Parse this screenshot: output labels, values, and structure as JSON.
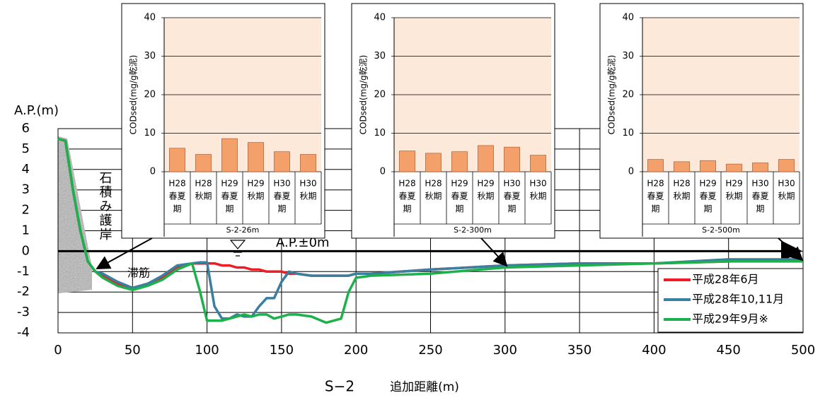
{
  "chart_data": [
    {
      "type": "line",
      "ylabel": "A.P.(m)",
      "xlabel_prefix": "S−2",
      "xlabel": "追加距離(m)",
      "annotations": [
        "石積み護岸",
        "滞筋",
        "A.P.±0m"
      ],
      "x": [
        0,
        5,
        10,
        15,
        20,
        25,
        30,
        40,
        50,
        60,
        70,
        80,
        90,
        95,
        100,
        105,
        110,
        115,
        120,
        125,
        130,
        135,
        140,
        145,
        150,
        155,
        160,
        170,
        180,
        190,
        195,
        200,
        210,
        250,
        300,
        350,
        400,
        450,
        500
      ],
      "series": [
        {
          "name": "平成28年6月",
          "color": "#ee1c24",
          "values": [
            5.5,
            5.4,
            3,
            1,
            -0.5,
            -1.0,
            -1.2,
            -1.6,
            -1.8,
            -1.6,
            -1.3,
            -0.8,
            -0.6,
            -0.6,
            -0.6,
            -0.6,
            -0.7,
            -0.7,
            -0.8,
            -0.8,
            -0.9,
            -0.9,
            -1.0,
            -1.0,
            -1.0,
            -1.1,
            -1.1,
            -1.2,
            -1.2,
            -1.2,
            -1.2,
            -1.1,
            -1.1,
            -0.9,
            -0.7,
            -0.6,
            -0.6,
            -0.5,
            -0.4
          ]
        },
        {
          "name": "平成28年10,11月",
          "color": "#3a7fa0",
          "values": [
            5.5,
            5.4,
            3,
            1,
            -0.5,
            -1.0,
            -1.1,
            -1.5,
            -1.8,
            -1.6,
            -1.2,
            -0.7,
            -0.6,
            -0.55,
            -0.55,
            -2.7,
            -3.3,
            -3.3,
            -3.1,
            -3.2,
            -3.2,
            -2.7,
            -2.3,
            -2.3,
            -1.5,
            -1.0,
            -1.1,
            -1.2,
            -1.2,
            -1.2,
            -1.2,
            -1.1,
            -1.1,
            -0.9,
            -0.7,
            -0.6,
            -0.6,
            -0.4,
            -0.4
          ]
        },
        {
          "name": "平成29年9月※",
          "color": "#1db04b",
          "values": [
            5.5,
            5.4,
            3,
            1,
            -0.5,
            -1.0,
            -1.3,
            -1.7,
            -1.9,
            -1.7,
            -1.4,
            -0.9,
            -0.6,
            -1.9,
            -3.4,
            -3.4,
            -3.4,
            -3.3,
            -3.2,
            -3.1,
            -3.2,
            -3.1,
            -3.1,
            -3.3,
            -3.2,
            -3.1,
            -3.1,
            -3.2,
            -3.5,
            -3.3,
            -2.0,
            -1.3,
            -1.2,
            -1.1,
            -0.8,
            -0.7,
            -0.6,
            -0.5,
            -0.5
          ]
        }
      ],
      "xlim": [
        0,
        500
      ],
      "xticks": [
        0,
        50,
        100,
        150,
        200,
        250,
        300,
        350,
        400,
        450,
        500
      ],
      "ylim": [
        -4,
        6
      ],
      "yticks": [
        -4,
        -3,
        -2,
        -1,
        0,
        1,
        2,
        3,
        4,
        5,
        6
      ],
      "grid": true,
      "legend": "lower right"
    },
    {
      "type": "bar",
      "ylabel": "CODsed(mg/g乾泥)",
      "xlabel": "S-2-26m",
      "color": "#f4a06a",
      "background": "#fde9d9",
      "categories": [
        [
          "H28",
          "春夏",
          "期"
        ],
        [
          "H28",
          "秋期"
        ],
        [
          "H29",
          "春夏",
          "期"
        ],
        [
          "H29",
          "秋期"
        ],
        [
          "H30",
          "春夏",
          "期"
        ],
        [
          "H30",
          "秋期"
        ]
      ],
      "values": [
        6.1,
        4.5,
        8.6,
        7.6,
        5.2,
        4.5
      ],
      "ylim": [
        0,
        40
      ],
      "yticks": [
        0,
        10,
        20,
        30,
        40
      ]
    },
    {
      "type": "bar",
      "ylabel": "CODsed(mg/g乾泥)",
      "xlabel": "S-2-300m",
      "color": "#f4a06a",
      "background": "#fde9d9",
      "categories": [
        [
          "H28",
          "春夏",
          "期"
        ],
        [
          "H28",
          "秋期"
        ],
        [
          "H29",
          "春夏",
          "期"
        ],
        [
          "H29",
          "秋期"
        ],
        [
          "H30",
          "春夏",
          "期"
        ],
        [
          "H30",
          "秋期"
        ]
      ],
      "values": [
        5.4,
        4.8,
        5.2,
        6.8,
        6.4,
        4.3
      ],
      "ylim": [
        0,
        40
      ],
      "yticks": [
        0,
        10,
        20,
        30,
        40
      ]
    },
    {
      "type": "bar",
      "ylabel": "CODsed(mg/g乾泥)",
      "xlabel": "S-2-500m",
      "color": "#f4a06a",
      "background": "#fde9d9",
      "categories": [
        [
          "H28",
          "春夏",
          "期"
        ],
        [
          "H28",
          "秋期"
        ],
        [
          "H29",
          "春夏",
          "期"
        ],
        [
          "H29",
          "秋期"
        ],
        [
          "H30",
          "春夏",
          "期"
        ],
        [
          "H30",
          "秋期"
        ]
      ],
      "values": [
        3.2,
        2.6,
        2.9,
        2.0,
        2.3,
        3.2
      ],
      "ylim": [
        0,
        40
      ],
      "yticks": [
        0,
        10,
        20,
        30,
        40
      ]
    }
  ]
}
